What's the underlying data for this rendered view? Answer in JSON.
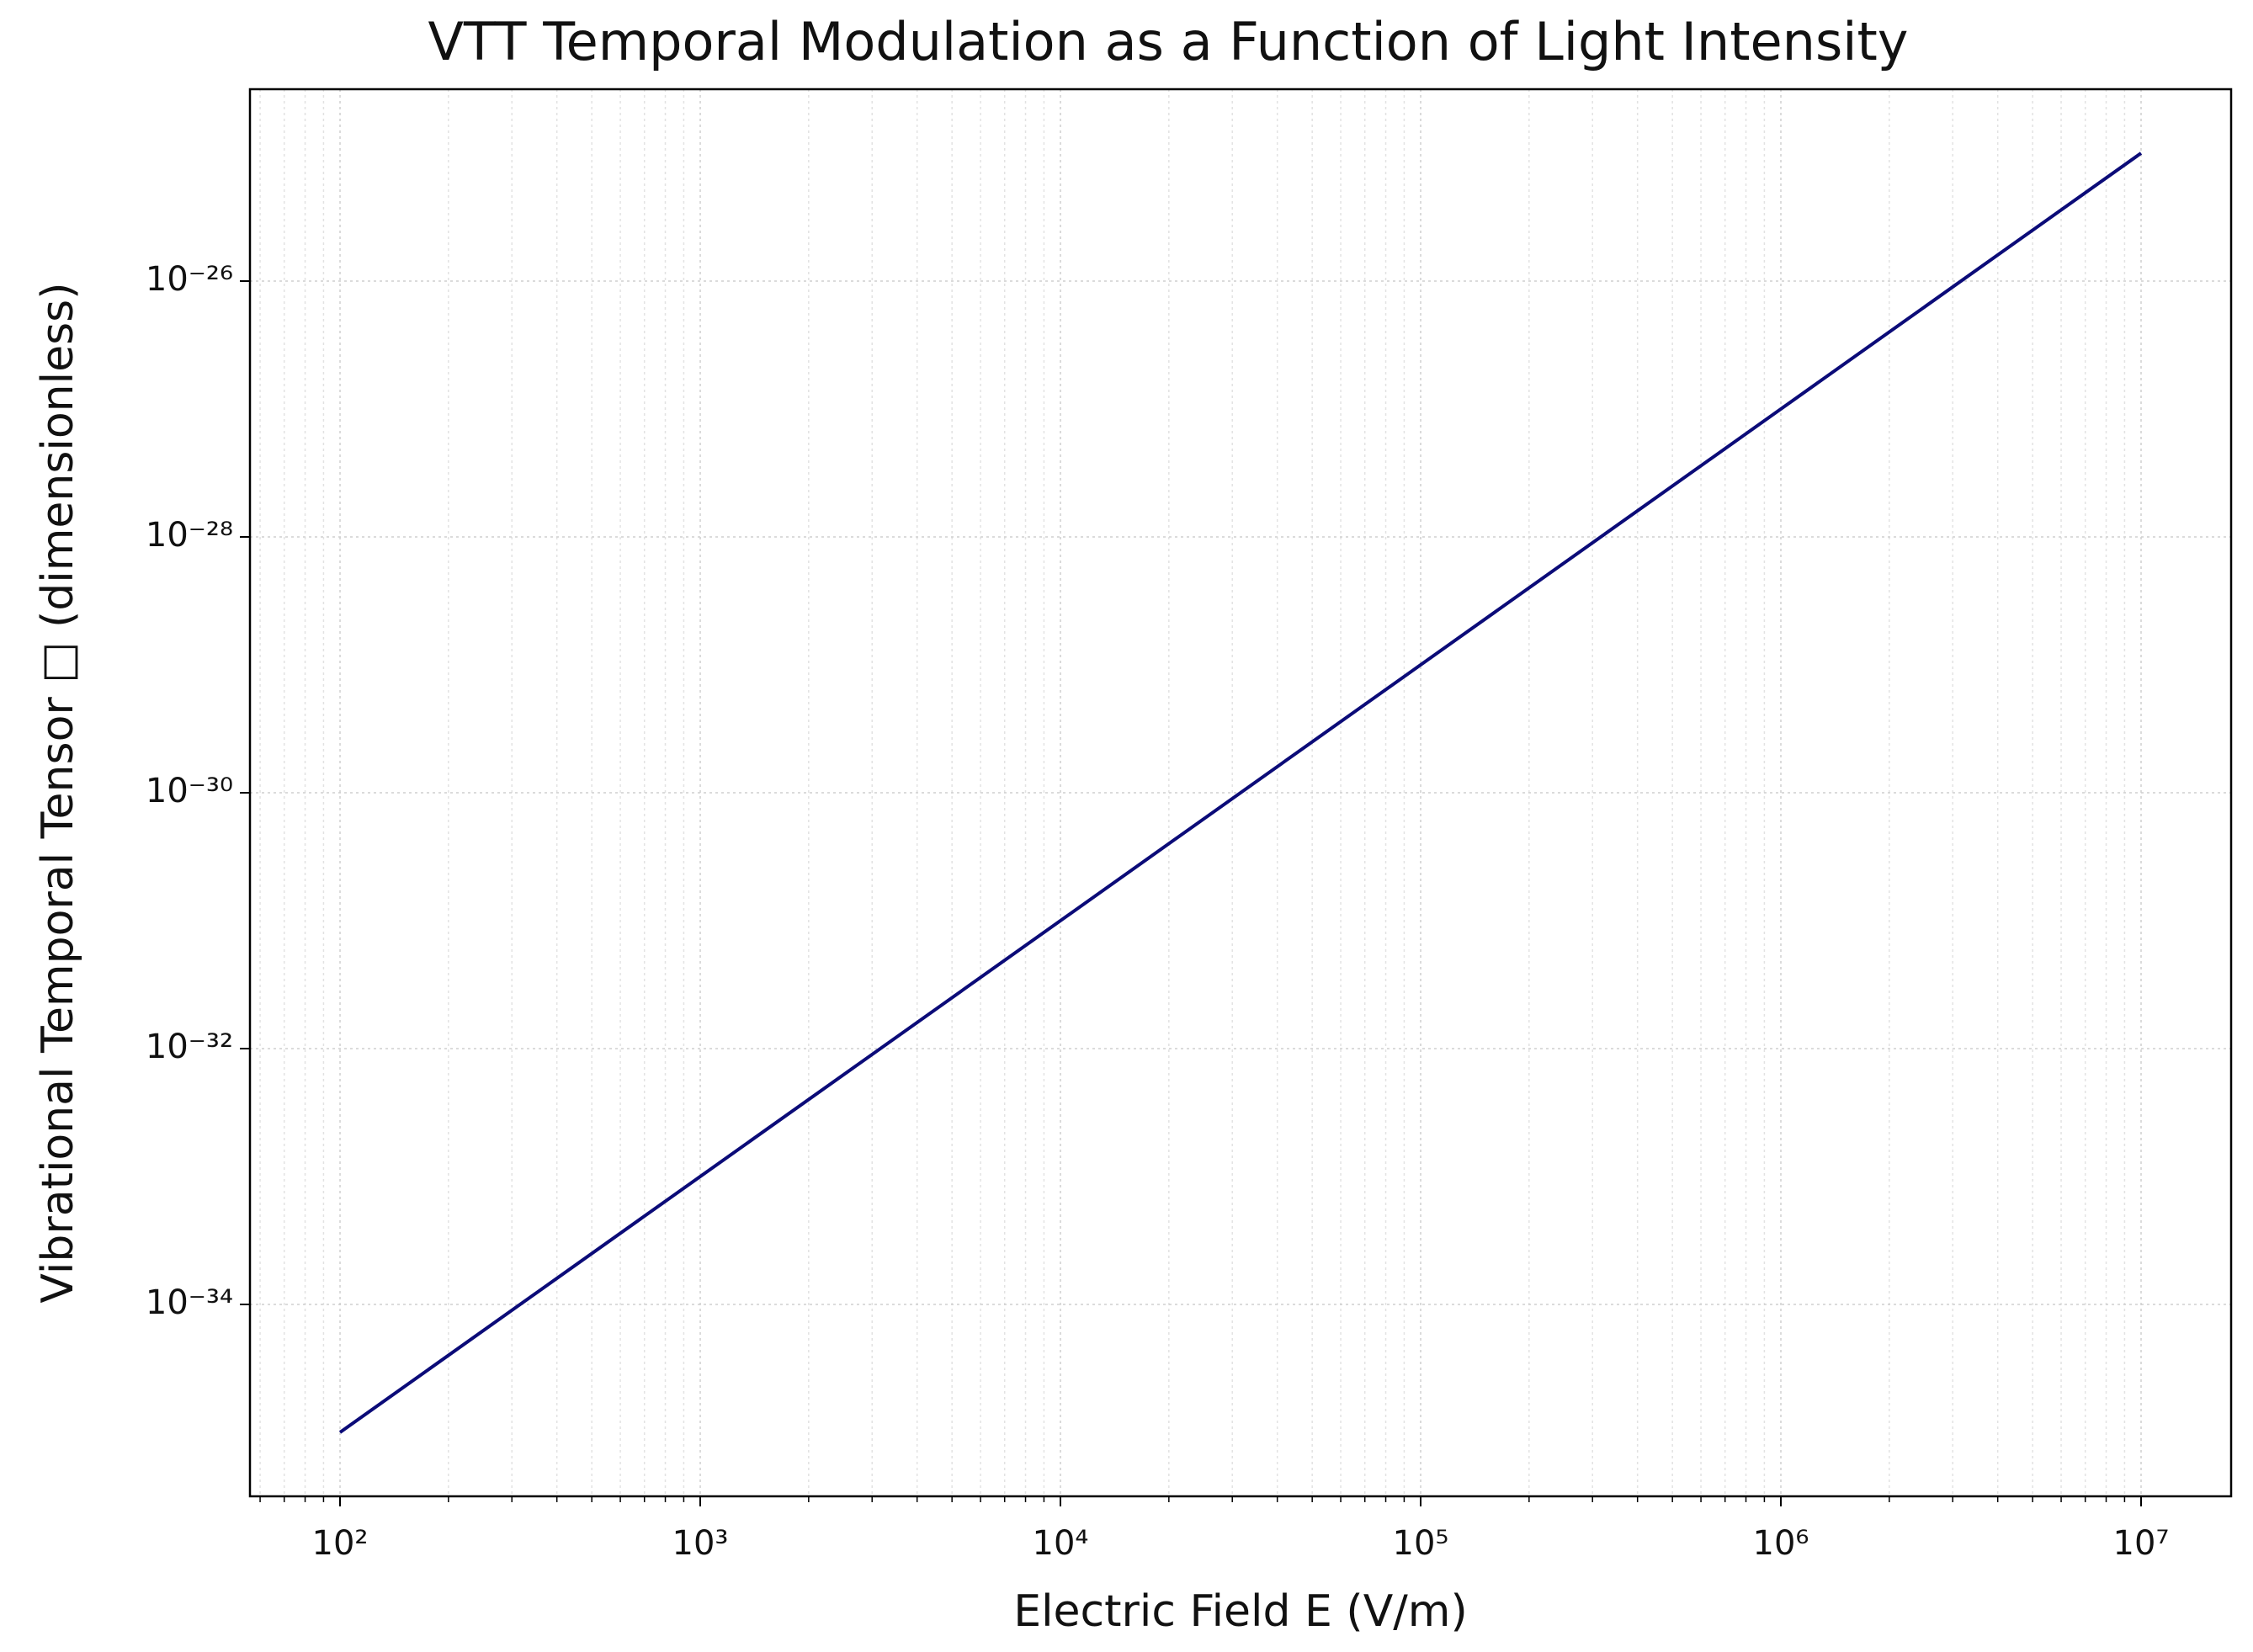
{
  "chart_data": {
    "type": "line",
    "title": "VTT Temporal Modulation as a Function of Light Intensity",
    "xlabel": "Electric Field E (V/m)",
    "ylabel": "Vibrational Temporal Tensor □ (dimensionless)",
    "x": [
      100,
      1000,
      10000,
      100000,
      1000000,
      10000000
    ],
    "values": [
      1e-35,
      1e-33,
      1e-31,
      1e-29,
      1e-27,
      1e-25
    ],
    "color": "#0b0b78",
    "log_x": true,
    "log_y": true,
    "grid": true,
    "xlim": [
      56.23,
      17783000
    ],
    "ylim": [
      3.162e-36,
      3.162e-25
    ],
    "xticks": [
      {
        "value": 100,
        "label": "10²"
      },
      {
        "value": 1000,
        "label": "10³"
      },
      {
        "value": 10000,
        "label": "10⁴"
      },
      {
        "value": 100000,
        "label": "10⁵"
      },
      {
        "value": 1000000,
        "label": "10⁶"
      },
      {
        "value": 10000000,
        "label": "10⁷"
      }
    ],
    "x_minor_ticks": [
      60,
      70,
      80,
      90,
      200,
      300,
      400,
      500,
      600,
      700,
      800,
      900,
      2000,
      3000,
      4000,
      5000,
      6000,
      7000,
      8000,
      9000,
      20000,
      30000,
      40000,
      50000,
      60000,
      70000,
      80000,
      90000,
      200000,
      300000,
      400000,
      500000,
      600000,
      700000,
      800000,
      900000,
      2000000,
      3000000,
      4000000,
      5000000,
      6000000,
      7000000,
      8000000,
      9000000
    ],
    "yticks": [
      {
        "value": 1e-26,
        "label": "10⁻²⁶"
      },
      {
        "value": 1e-28,
        "label": "10⁻²⁸"
      },
      {
        "value": 1e-30,
        "label": "10⁻³⁰"
      },
      {
        "value": 1e-32,
        "label": "10⁻³²"
      },
      {
        "value": 1e-34,
        "label": "10⁻³⁴"
      }
    ]
  }
}
